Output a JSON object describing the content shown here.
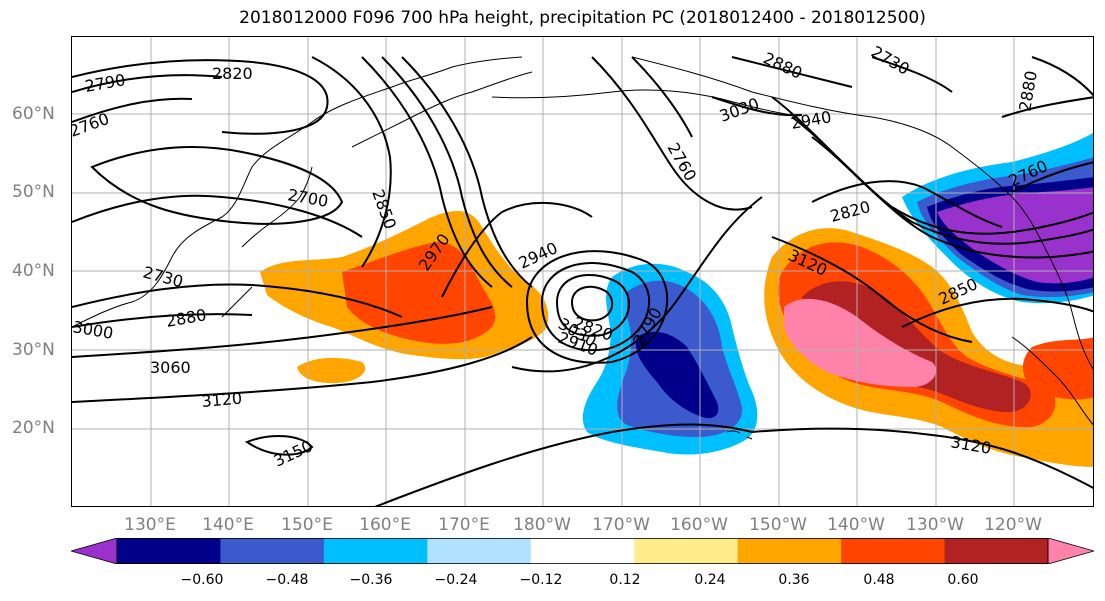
{
  "title": "2018012000 F096 700 hPa height, precipitation PC (2018012400 - 2018012500)",
  "lat_labels": [
    "60°N",
    "50°N",
    "40°N",
    "30°N",
    "20°N"
  ],
  "lon_labels": [
    "130°E",
    "140°E",
    "150°E",
    "160°E",
    "170°E",
    "180°W",
    "170°W",
    "160°W",
    "150°W",
    "140°W",
    "130°W",
    "120°W"
  ],
  "colorbar": {
    "ticks": [
      "−0.60",
      "−0.48",
      "−0.36",
      "−0.24",
      "−0.12",
      "0.12",
      "0.24",
      "0.36",
      "0.48",
      "0.60"
    ],
    "colors": [
      "#9932cc",
      "#00008b",
      "#3a5acd",
      "#00bfff",
      "#b0e2ff",
      "#ffffff",
      "#ffec8b",
      "#ffa500",
      "#ff4500",
      "#b22222",
      "#ff82ab"
    ]
  },
  "contour_labels": [
    "2790",
    "2820",
    "2760",
    "2700",
    "2850",
    "2730",
    "2880",
    "3000",
    "3060",
    "3120",
    "3150",
    "2970",
    "2940",
    "3030",
    "2910",
    "2820",
    "2790",
    "2760",
    "2730",
    "2880",
    "3030",
    "2940",
    "2820",
    "3120",
    "2850",
    "2760",
    "2880"
  ],
  "colors": {
    "axis_label": "#7f7f7f",
    "contour": "#000000",
    "coast": "#000000"
  }
}
